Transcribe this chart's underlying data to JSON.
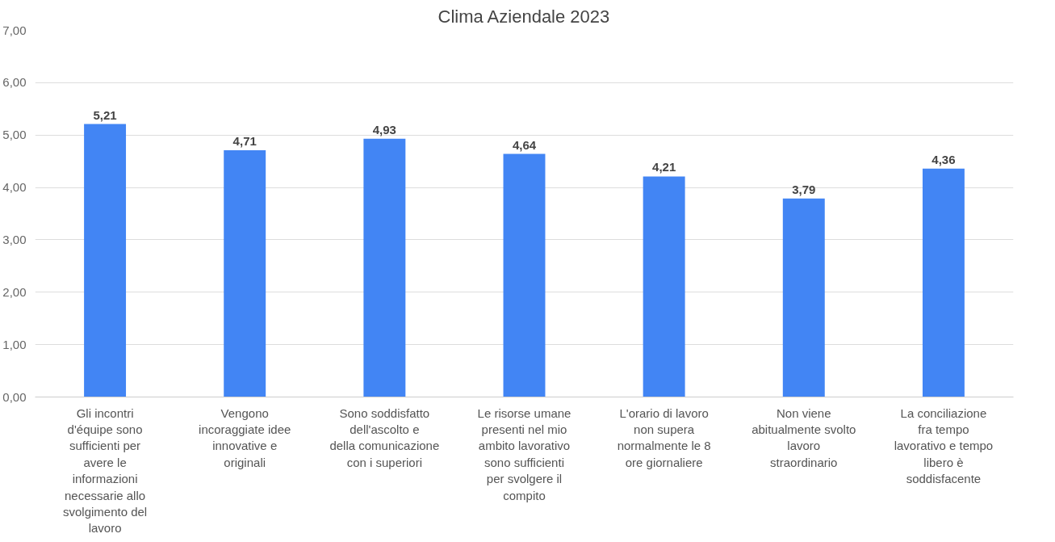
{
  "chart_data": {
    "type": "bar",
    "title": "Clima Aziendale 2023",
    "categories": [
      "Gli incontri d'équipe sono sufficienti per avere le informazioni necessarie allo svolgimento del lavoro",
      "Vengono incoraggiate idee innovative e originali",
      "Sono soddisfatto dell'ascolto e della comunicazione con i superiori",
      "Le risorse umane presenti nel mio ambito lavorativo sono sufficienti per svolgere il compito",
      "L'orario di lavoro non supera normalmente le 8 ore giornaliere",
      "Non viene abitualmente svolto lavoro straordinario",
      "La conciliazione fra tempo lavorativo e tempo libero è soddisfacente"
    ],
    "values": [
      5.21,
      4.71,
      4.93,
      4.64,
      4.21,
      3.79,
      4.36
    ],
    "value_labels": [
      "5,21",
      "4,71",
      "4,93",
      "4,64",
      "4,21",
      "3,79",
      "4,36"
    ],
    "color": "#4285f4",
    "ylim": [
      0,
      7
    ],
    "yticks": [
      {
        "value": 0,
        "label": "0,00"
      },
      {
        "value": 1,
        "label": "1,00"
      },
      {
        "value": 2,
        "label": "2,00"
      },
      {
        "value": 3,
        "label": "3,00"
      },
      {
        "value": 4,
        "label": "4,00"
      },
      {
        "value": 5,
        "label": "5,00"
      },
      {
        "value": 6,
        "label": "6,00"
      },
      {
        "value": 7,
        "label": "7,00"
      }
    ],
    "grid": "y"
  }
}
